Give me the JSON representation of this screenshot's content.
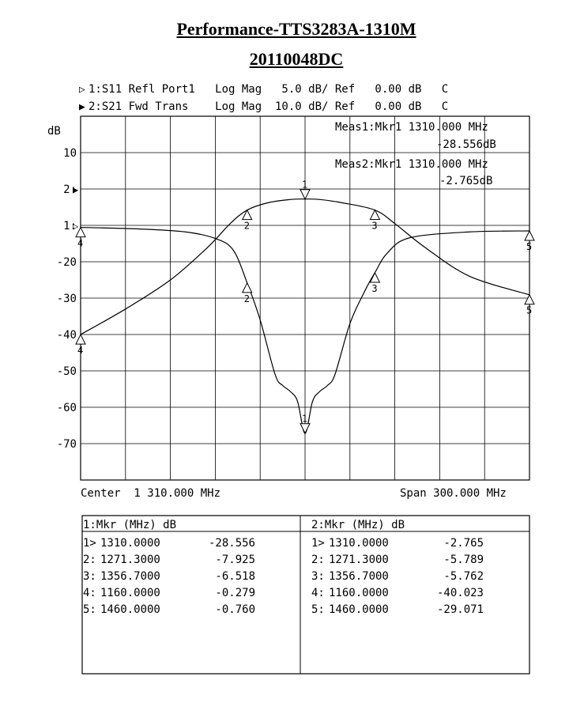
{
  "title": "Performance-TTS3283A-1310M",
  "subtitle": "20110048DC",
  "channel1_line": {
    "marker": "▷",
    "text": "1:S11 Refl Port1   Log Mag   5.0 dB/ Ref   0.00 dB   C"
  },
  "channel2_line": {
    "marker": "▶",
    "text": "2:S21 Fwd Trans    Log Mag  10.0 dB/ Ref   0.00 dB   C"
  },
  "meas1": {
    "line1": "Meas1:Mkr1 1310.000 MHz",
    "line2": "-28.556dB"
  },
  "meas2": {
    "line1": "Meas2:Mkr1 1310.000 MHz",
    "line2": "-2.765dB"
  },
  "axis": {
    "ylabel": "dB",
    "left_labels": [
      {
        "text": "10",
        "row": 1
      },
      {
        "text": "2:",
        "row": 2,
        "marker": "▶"
      },
      {
        "text": "1:",
        "row": 3,
        "marker": "▷"
      },
      {
        "text": "-20",
        "row": 4
      },
      {
        "text": "-30",
        "row": 5
      },
      {
        "text": "-40",
        "row": 6
      },
      {
        "text": "-50",
        "row": 7
      },
      {
        "text": "-60",
        "row": 8
      },
      {
        "text": "-70",
        "row": 9
      }
    ],
    "center_label": "Center  1 310.000 MHz",
    "span_label": "Span 300.000 MHz"
  },
  "chart_data": {
    "type": "line",
    "x_range_mhz": [
      1160,
      1460
    ],
    "grid": true,
    "series": [
      {
        "name": "S11",
        "x": [
          1160,
          1200,
          1230,
          1250,
          1262,
          1271.3,
          1280,
          1290,
          1295,
          1300,
          1305,
          1310,
          1315,
          1320,
          1325,
          1330,
          1340,
          1350,
          1356.7,
          1365,
          1380,
          1420,
          1460
        ],
        "y": [
          -0.28,
          -0.5,
          -0.9,
          -1.8,
          -3.4,
          -7.9,
          -13.0,
          -20.5,
          -22.0,
          -22.8,
          -24.2,
          -28.6,
          -24.2,
          -22.8,
          -22.0,
          -20.5,
          -13.5,
          -9.0,
          -6.5,
          -3.8,
          -1.7,
          -0.9,
          -0.76
        ]
      },
      {
        "name": "S21",
        "x": [
          1160,
          1190,
          1220,
          1245,
          1260,
          1271.3,
          1285,
          1300,
          1310,
          1320,
          1335,
          1356.7,
          1370,
          1390,
          1420,
          1460
        ],
        "y": [
          -40.0,
          -33.0,
          -25.0,
          -16.0,
          -9.5,
          -5.8,
          -3.8,
          -2.9,
          -2.765,
          -2.9,
          -3.8,
          -5.8,
          -9.5,
          -16.0,
          -24.0,
          -29.1
        ]
      }
    ],
    "markers": [
      {
        "trace": 1,
        "num": "1",
        "x": 1310.0,
        "y": -28.556
      },
      {
        "trace": 1,
        "num": "2",
        "x": 1271.3,
        "y": -7.925
      },
      {
        "trace": 1,
        "num": "3",
        "x": 1356.7,
        "y": -6.518
      },
      {
        "trace": 1,
        "num": "4",
        "x": 1160.0,
        "y": -0.279
      },
      {
        "trace": 1,
        "num": "5",
        "x": 1460.0,
        "y": -0.76
      },
      {
        "trace": 2,
        "num": "1",
        "x": 1310.0,
        "y": -2.765
      },
      {
        "trace": 2,
        "num": "2",
        "x": 1271.3,
        "y": -5.789
      },
      {
        "trace": 2,
        "num": "3",
        "x": 1356.7,
        "y": -5.762
      },
      {
        "trace": 2,
        "num": "4",
        "x": 1160.0,
        "y": -40.023
      },
      {
        "trace": 2,
        "num": "5",
        "x": 1460.0,
        "y": -29.071
      }
    ]
  },
  "marker_table": {
    "left": {
      "header": "1:Mkr (MHz)     dB",
      "rows": [
        {
          "id": "1>",
          "freq": "1310.0000",
          "db": "-28.556"
        },
        {
          "id": "2:",
          "freq": "1271.3000",
          "db": "-7.925"
        },
        {
          "id": "3:",
          "freq": "1356.7000",
          "db": "-6.518"
        },
        {
          "id": "4:",
          "freq": "1160.0000",
          "db": "-0.279"
        },
        {
          "id": "5:",
          "freq": "1460.0000",
          "db": "-0.760"
        }
      ]
    },
    "right": {
      "header": "2:Mkr (MHz)     dB",
      "rows": [
        {
          "id": "1>",
          "freq": "1310.0000",
          "db": "-2.765"
        },
        {
          "id": "2:",
          "freq": "1271.3000",
          "db": "-5.789"
        },
        {
          "id": "3:",
          "freq": "1356.7000",
          "db": "-5.762"
        },
        {
          "id": "4:",
          "freq": "1160.0000",
          "db": "-40.023"
        },
        {
          "id": "5:",
          "freq": "1460.0000",
          "db": "-29.071"
        }
      ]
    }
  }
}
